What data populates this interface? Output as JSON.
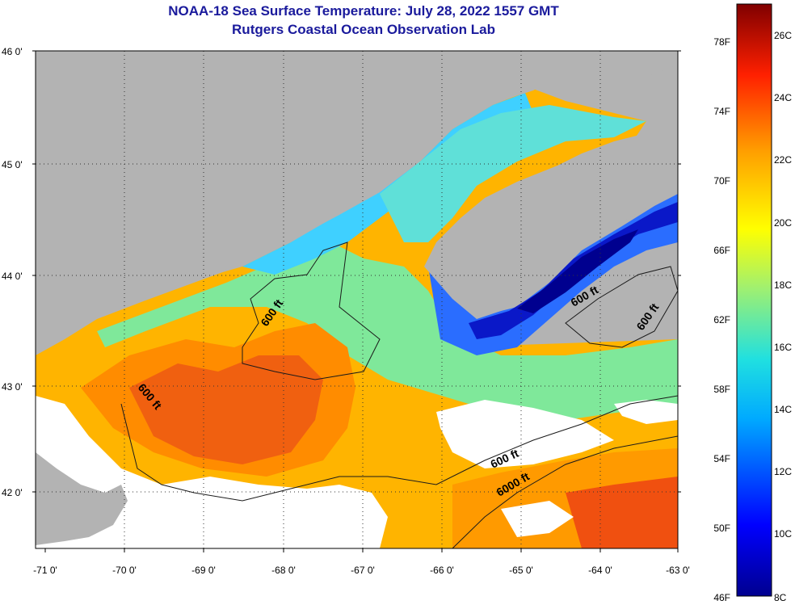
{
  "header": {
    "title": "NOAA-18 Sea Surface Temperature:  July 28, 2022 1557 GMT",
    "subtitle": "Rutgers Coastal Ocean Observation Lab"
  },
  "axes": {
    "lat_labels": [
      "46 0'",
      "45 0'",
      "44 0'",
      "43 0'",
      "42 0'"
    ],
    "lon_labels": [
      "-71 0'",
      "-70 0'",
      "-69 0'",
      "-68 0'",
      "-67 0'",
      "-66 0'",
      "-65 0'",
      "-64 0'",
      "-63 0'"
    ]
  },
  "contours": {
    "labels": [
      "600 ft",
      "600 ft",
      "600 ft",
      "600 ft",
      "600 ft",
      "6000 ft"
    ]
  },
  "legend": {
    "f_labels": [
      "78F",
      "74F",
      "70F",
      "66F",
      "62F",
      "58F",
      "54F",
      "50F",
      "46F"
    ],
    "c_labels": [
      "26C",
      "24C",
      "22C",
      "20C",
      "18C",
      "16C",
      "14C",
      "12C",
      "10C",
      "8C"
    ]
  },
  "colors": {
    "land": "#b3b3b3",
    "cloud": "#ffffff",
    "title": "#1a1a9c",
    "cold": "#00008f",
    "blue": "#1f5fff",
    "cyan": "#2fd2ff",
    "green": "#8ff28f",
    "yellow": "#ffe600",
    "orange": "#ff9a00",
    "red": "#e83500",
    "dark_red": "#8f0000"
  }
}
